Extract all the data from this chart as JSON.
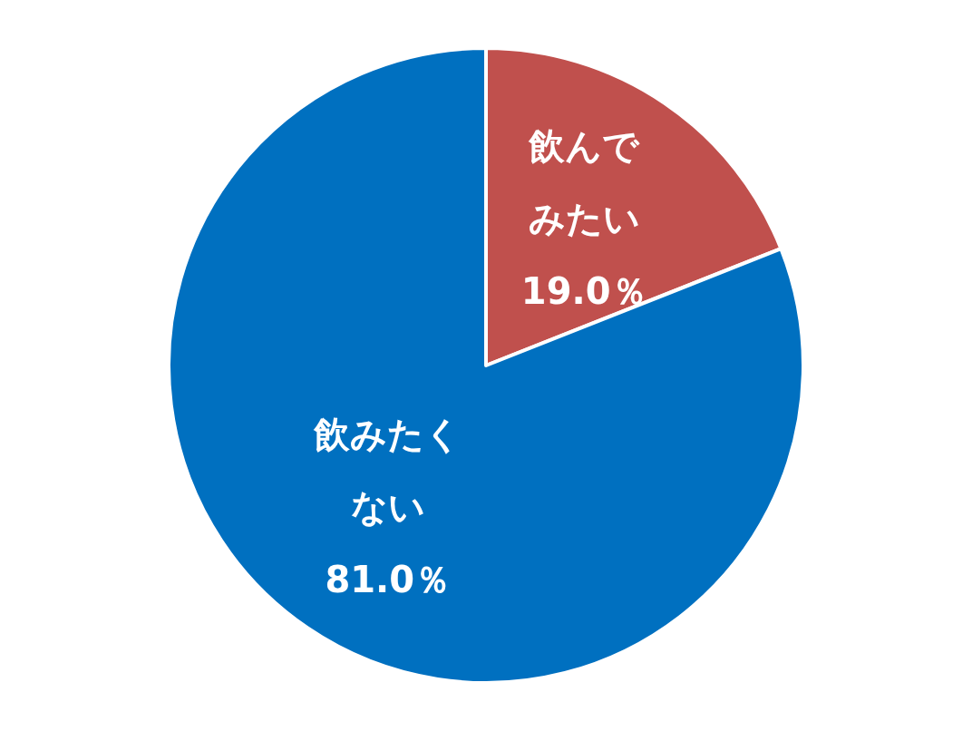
{
  "chart_data": {
    "type": "pie",
    "categories": [
      "飲んでみたい",
      "飲みたくない"
    ],
    "values": [
      19.0,
      81.0
    ],
    "colors": [
      "#c0504d",
      "#0070c0"
    ],
    "value_labels": [
      "19.0％",
      "81.0％"
    ]
  }
}
